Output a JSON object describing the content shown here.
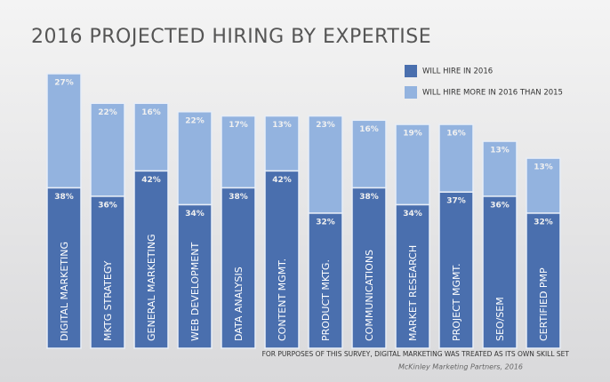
{
  "chart_data": {
    "type": "stacked_bar",
    "title": "2016 PROJECTED HIRING BY EXPERTISE",
    "categories": [
      "DIGITAL MARKETING",
      "MKTG  STRATEGY",
      "GENERAL MARKETING",
      "WEB DEVELOPMENT",
      "DATA ANALYSIS",
      "CONTENT MGMT.",
      "PRODUCT MKTG.",
      "COMMUNICATIONS",
      "MARKET RESEARCH",
      "PROJECT MGMT.",
      "SEO/SEM",
      "CERTIFIED PMP"
    ],
    "series": [
      {
        "name": "WILL HIRE IN 2016",
        "color": "#4a6fae",
        "values": [
          38,
          36,
          42,
          34,
          38,
          42,
          32,
          38,
          34,
          37,
          36,
          32
        ],
        "value_labels": [
          "38%",
          "36%",
          "42%",
          "34%",
          "38%",
          "42%",
          "32%",
          "38%",
          "34%",
          "37%",
          "36%",
          "32%"
        ]
      },
      {
        "name": "WILL HIRE MORE IN 2016 THAN 2015",
        "color": "#93b3df",
        "values": [
          27,
          22,
          16,
          22,
          17,
          13,
          23,
          16,
          19,
          16,
          13,
          13
        ],
        "value_labels": [
          "27%",
          "22%",
          "16%",
          "22%",
          "17%",
          "13%",
          "23%",
          "16%",
          "19%",
          "16%",
          "13%",
          "13%"
        ]
      }
    ],
    "footnote": "FOR PURPOSES OF THIS SURVEY, DIGITAL MARKETING WAS TREATED AS ITS OWN SKILL SET",
    "source": "McKinley Marketing Partners, 2016"
  }
}
